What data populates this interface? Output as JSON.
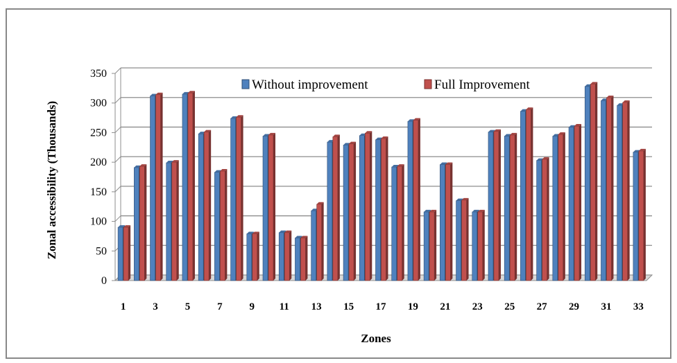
{
  "chart_data": {
    "type": "bar",
    "xlabel": "Zones",
    "ylabel": "Zonal accessibility (Thousands)",
    "ylim": [
      0,
      350
    ],
    "yticks": [
      0,
      50,
      100,
      150,
      200,
      250,
      300,
      350
    ],
    "grid": true,
    "legend_position": "top",
    "categories": [
      "1",
      "2",
      "3",
      "4",
      "5",
      "6",
      "7",
      "8",
      "9",
      "10",
      "11",
      "12",
      "13",
      "14",
      "15",
      "16",
      "17",
      "18",
      "19",
      "20",
      "21",
      "22",
      "23",
      "24",
      "25",
      "26",
      "27",
      "28",
      "29",
      "30",
      "31",
      "32",
      "33"
    ],
    "xtick_labels": [
      "1",
      "",
      "3",
      "",
      "5",
      "",
      "7",
      "",
      "9",
      "",
      "11",
      "",
      "13",
      "",
      "15",
      "",
      "17",
      "",
      "19",
      "",
      "21",
      "",
      "23",
      "",
      "25",
      "",
      "27",
      "",
      "29",
      "",
      "31",
      "",
      "33"
    ],
    "series": [
      {
        "name": "Without improvement",
        "color": "#4F81BD",
        "values": [
          90,
          191,
          312,
          199,
          315,
          248,
          183,
          274,
          79,
          244,
          81,
          72,
          118,
          234,
          229,
          245,
          238,
          192,
          269,
          116,
          196,
          135,
          116,
          251,
          244,
          286,
          203,
          244,
          259,
          328,
          304,
          296,
          217
        ]
      },
      {
        "name": "Full Improvement",
        "color": "#C0504D",
        "values": [
          90,
          193,
          314,
          200,
          317,
          251,
          185,
          276,
          79,
          246,
          81,
          72,
          129,
          243,
          231,
          249,
          240,
          193,
          271,
          116,
          196,
          136,
          116,
          252,
          246,
          289,
          205,
          247,
          261,
          332,
          309,
          301,
          219
        ]
      }
    ]
  }
}
